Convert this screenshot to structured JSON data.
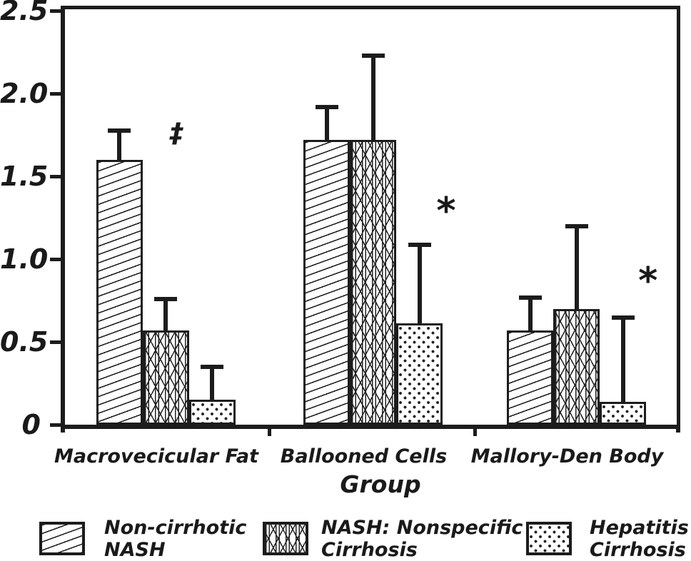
{
  "chart_data": {
    "type": "bar",
    "title": "",
    "xlabel": "Group",
    "ylabel": "",
    "ylim": [
      0,
      2.5
    ],
    "grid": false,
    "legend_position": "bottom",
    "ink_color": "#1c1c1c",
    "background": "#ffffff",
    "yticks": [
      0,
      0.5,
      1.0,
      1.5,
      2.0,
      2.5
    ],
    "ytick_labels": [
      "0",
      "0.5",
      "1.0",
      "1.5",
      "2.0",
      "2.5"
    ],
    "categories": [
      "Macrovecicular Fat",
      "Ballooned Cells",
      "Mallory-Den Body"
    ],
    "series": [
      {
        "name": "Non-cirrhotic NASH",
        "pattern": "diagonal-hatch",
        "values": [
          1.6,
          1.72,
          0.57
        ],
        "error_top": [
          1.79,
          1.93,
          0.78
        ]
      },
      {
        "name": "NASH: Nonspecific Cirrhosis",
        "pattern": "crosshatch",
        "values": [
          0.57,
          1.72,
          0.7
        ],
        "error_top": [
          0.77,
          2.24,
          1.21
        ]
      },
      {
        "name": "Hepatitis C Cirrhosis",
        "pattern": "dots",
        "values": [
          0.15,
          0.61,
          0.14
        ],
        "error_top": [
          0.36,
          1.1,
          0.66
        ]
      }
    ],
    "annotations": [
      {
        "symbol": "‡",
        "x_frac": 0.185,
        "y_value": 1.76
      },
      {
        "symbol": "*",
        "x_frac": 0.623,
        "y_value": 1.31
      },
      {
        "symbol": "*",
        "x_frac": 0.951,
        "y_value": 0.89
      }
    ],
    "legend": [
      {
        "label_lines": [
          "Non-cirrhotic",
          "NASH"
        ],
        "pattern": "diagonal-hatch"
      },
      {
        "label_lines": [
          "NASH: Nonspecific",
          "Cirrhosis"
        ],
        "pattern": "crosshatch"
      },
      {
        "label_lines": [
          "Hepatitis C",
          "Cirrhosis"
        ],
        "pattern": "dots"
      }
    ]
  }
}
